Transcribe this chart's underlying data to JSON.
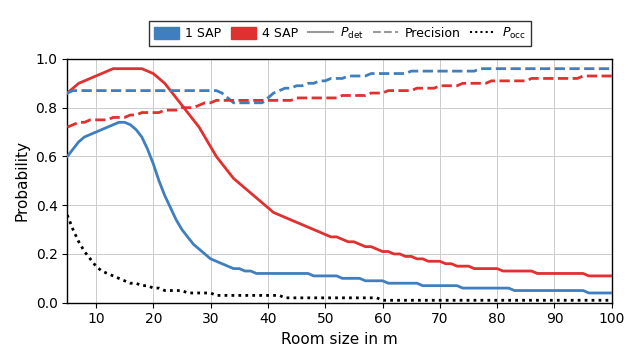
{
  "title": "",
  "xlabel": "Room size in m",
  "ylabel": "Probability",
  "xlim": [
    5,
    100
  ],
  "ylim": [
    0,
    1.0
  ],
  "xticks": [
    10,
    20,
    30,
    40,
    50,
    60,
    70,
    80,
    90,
    100
  ],
  "yticks": [
    0,
    0.2,
    0.4,
    0.6,
    0.8,
    1
  ],
  "blue_color": "#3F7FBF",
  "red_color": "#E03030",
  "gray_color": "#999999",
  "black_color": "#000000",
  "x": [
    5,
    6,
    7,
    8,
    9,
    10,
    11,
    12,
    13,
    14,
    15,
    16,
    17,
    18,
    19,
    20,
    21,
    22,
    23,
    24,
    25,
    26,
    27,
    28,
    29,
    30,
    31,
    32,
    33,
    34,
    35,
    36,
    37,
    38,
    39,
    40,
    41,
    42,
    43,
    44,
    45,
    46,
    47,
    48,
    49,
    50,
    51,
    52,
    53,
    54,
    55,
    56,
    57,
    58,
    59,
    60,
    61,
    62,
    63,
    64,
    65,
    66,
    67,
    68,
    69,
    70,
    71,
    72,
    73,
    74,
    75,
    76,
    77,
    78,
    79,
    80,
    81,
    82,
    83,
    84,
    85,
    86,
    87,
    88,
    89,
    90,
    91,
    92,
    93,
    94,
    95,
    96,
    97,
    98,
    99,
    100
  ],
  "pdet_1sap": [
    0.6,
    0.63,
    0.66,
    0.68,
    0.69,
    0.7,
    0.71,
    0.72,
    0.73,
    0.74,
    0.74,
    0.73,
    0.71,
    0.68,
    0.63,
    0.57,
    0.5,
    0.44,
    0.39,
    0.34,
    0.3,
    0.27,
    0.24,
    0.22,
    0.2,
    0.18,
    0.17,
    0.16,
    0.15,
    0.14,
    0.14,
    0.13,
    0.13,
    0.12,
    0.12,
    0.12,
    0.12,
    0.12,
    0.12,
    0.12,
    0.12,
    0.12,
    0.12,
    0.11,
    0.11,
    0.11,
    0.11,
    0.11,
    0.1,
    0.1,
    0.1,
    0.1,
    0.09,
    0.09,
    0.09,
    0.09,
    0.08,
    0.08,
    0.08,
    0.08,
    0.08,
    0.08,
    0.07,
    0.07,
    0.07,
    0.07,
    0.07,
    0.07,
    0.07,
    0.06,
    0.06,
    0.06,
    0.06,
    0.06,
    0.06,
    0.06,
    0.06,
    0.06,
    0.05,
    0.05,
    0.05,
    0.05,
    0.05,
    0.05,
    0.05,
    0.05,
    0.05,
    0.05,
    0.05,
    0.05,
    0.05,
    0.04,
    0.04,
    0.04,
    0.04,
    0.04
  ],
  "pdet_4sap": [
    0.86,
    0.88,
    0.9,
    0.91,
    0.92,
    0.93,
    0.94,
    0.95,
    0.96,
    0.96,
    0.96,
    0.96,
    0.96,
    0.96,
    0.95,
    0.94,
    0.92,
    0.9,
    0.87,
    0.84,
    0.81,
    0.78,
    0.75,
    0.72,
    0.68,
    0.64,
    0.6,
    0.57,
    0.54,
    0.51,
    0.49,
    0.47,
    0.45,
    0.43,
    0.41,
    0.39,
    0.37,
    0.36,
    0.35,
    0.34,
    0.33,
    0.32,
    0.31,
    0.3,
    0.29,
    0.28,
    0.27,
    0.27,
    0.26,
    0.25,
    0.25,
    0.24,
    0.23,
    0.23,
    0.22,
    0.21,
    0.21,
    0.2,
    0.2,
    0.19,
    0.19,
    0.18,
    0.18,
    0.17,
    0.17,
    0.17,
    0.16,
    0.16,
    0.15,
    0.15,
    0.15,
    0.14,
    0.14,
    0.14,
    0.14,
    0.14,
    0.13,
    0.13,
    0.13,
    0.13,
    0.13,
    0.13,
    0.12,
    0.12,
    0.12,
    0.12,
    0.12,
    0.12,
    0.12,
    0.12,
    0.12,
    0.11,
    0.11,
    0.11,
    0.11,
    0.11
  ],
  "prec_1sap": [
    0.86,
    0.87,
    0.87,
    0.87,
    0.87,
    0.87,
    0.87,
    0.87,
    0.87,
    0.87,
    0.87,
    0.87,
    0.87,
    0.87,
    0.87,
    0.87,
    0.87,
    0.87,
    0.87,
    0.87,
    0.87,
    0.87,
    0.87,
    0.87,
    0.87,
    0.87,
    0.87,
    0.86,
    0.84,
    0.82,
    0.82,
    0.82,
    0.82,
    0.82,
    0.82,
    0.84,
    0.86,
    0.87,
    0.88,
    0.88,
    0.89,
    0.89,
    0.9,
    0.9,
    0.91,
    0.91,
    0.92,
    0.92,
    0.92,
    0.93,
    0.93,
    0.93,
    0.93,
    0.94,
    0.94,
    0.94,
    0.94,
    0.94,
    0.94,
    0.94,
    0.95,
    0.95,
    0.95,
    0.95,
    0.95,
    0.95,
    0.95,
    0.95,
    0.95,
    0.95,
    0.95,
    0.95,
    0.96,
    0.96,
    0.96,
    0.96,
    0.96,
    0.96,
    0.96,
    0.96,
    0.96,
    0.96,
    0.96,
    0.96,
    0.96,
    0.96,
    0.96,
    0.96,
    0.96,
    0.96,
    0.96,
    0.96,
    0.96,
    0.96,
    0.96,
    0.96
  ],
  "prec_4sap": [
    0.72,
    0.73,
    0.74,
    0.74,
    0.75,
    0.75,
    0.75,
    0.75,
    0.76,
    0.76,
    0.76,
    0.77,
    0.77,
    0.78,
    0.78,
    0.78,
    0.78,
    0.79,
    0.79,
    0.79,
    0.8,
    0.8,
    0.8,
    0.81,
    0.82,
    0.82,
    0.83,
    0.83,
    0.83,
    0.83,
    0.83,
    0.83,
    0.83,
    0.83,
    0.83,
    0.83,
    0.83,
    0.83,
    0.83,
    0.83,
    0.84,
    0.84,
    0.84,
    0.84,
    0.84,
    0.84,
    0.84,
    0.84,
    0.85,
    0.85,
    0.85,
    0.85,
    0.85,
    0.86,
    0.86,
    0.86,
    0.87,
    0.87,
    0.87,
    0.87,
    0.87,
    0.88,
    0.88,
    0.88,
    0.88,
    0.89,
    0.89,
    0.89,
    0.89,
    0.9,
    0.9,
    0.9,
    0.9,
    0.9,
    0.91,
    0.91,
    0.91,
    0.91,
    0.91,
    0.91,
    0.91,
    0.92,
    0.92,
    0.92,
    0.92,
    0.92,
    0.92,
    0.92,
    0.92,
    0.92,
    0.93,
    0.93,
    0.93,
    0.93,
    0.93,
    0.93
  ],
  "pocc": [
    0.36,
    0.3,
    0.25,
    0.21,
    0.18,
    0.15,
    0.13,
    0.12,
    0.11,
    0.1,
    0.09,
    0.08,
    0.08,
    0.07,
    0.07,
    0.06,
    0.06,
    0.05,
    0.05,
    0.05,
    0.05,
    0.04,
    0.04,
    0.04,
    0.04,
    0.04,
    0.03,
    0.03,
    0.03,
    0.03,
    0.03,
    0.03,
    0.03,
    0.03,
    0.03,
    0.03,
    0.03,
    0.03,
    0.02,
    0.02,
    0.02,
    0.02,
    0.02,
    0.02,
    0.02,
    0.02,
    0.02,
    0.02,
    0.02,
    0.02,
    0.02,
    0.02,
    0.02,
    0.02,
    0.02,
    0.01,
    0.01,
    0.01,
    0.01,
    0.01,
    0.01,
    0.01,
    0.01,
    0.01,
    0.01,
    0.01,
    0.01,
    0.01,
    0.01,
    0.01,
    0.01,
    0.01,
    0.01,
    0.01,
    0.01,
    0.01,
    0.01,
    0.01,
    0.01,
    0.01,
    0.01,
    0.01,
    0.01,
    0.01,
    0.01,
    0.01,
    0.01,
    0.01,
    0.01,
    0.01,
    0.01,
    0.01,
    0.01,
    0.01,
    0.01,
    0.01
  ]
}
